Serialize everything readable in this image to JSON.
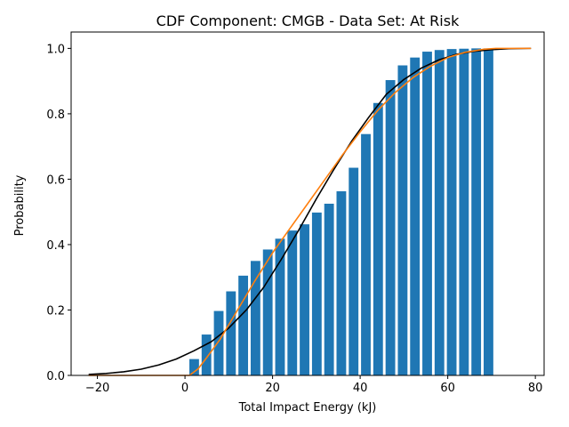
{
  "chart_data": {
    "type": "bar",
    "title": "CDF Component: CMGB - Data Set: At Risk",
    "xlabel": "Total Impact Energy (kJ)",
    "ylabel": "Probability",
    "xlim": [
      -26,
      82
    ],
    "ylim": [
      0,
      1.05
    ],
    "xticks": [
      -20,
      0,
      20,
      40,
      60,
      80
    ],
    "yticks": [
      0.0,
      0.2,
      0.4,
      0.6,
      0.8,
      1.0
    ],
    "xtick_labels": [
      "−20",
      "0",
      "20",
      "40",
      "60",
      "80"
    ],
    "ytick_labels": [
      "0.0",
      "0.2",
      "0.4",
      "0.6",
      "0.8",
      "1.0"
    ],
    "bar_color": "#1f77b4",
    "bar_width": 2.2,
    "bars": {
      "x": [
        2.1,
        4.9,
        7.7,
        10.5,
        13.3,
        16.1,
        18.9,
        21.7,
        24.5,
        27.3,
        30.1,
        32.9,
        35.7,
        38.5,
        41.3,
        44.1,
        46.9,
        49.7,
        52.5,
        55.3,
        58.1,
        60.9,
        63.7,
        66.5,
        69.3
      ],
      "y": [
        0.05,
        0.125,
        0.197,
        0.257,
        0.305,
        0.35,
        0.385,
        0.418,
        0.443,
        0.462,
        0.498,
        0.525,
        0.563,
        0.635,
        0.738,
        0.833,
        0.903,
        0.948,
        0.972,
        0.99,
        0.995,
        0.998,
        0.999,
        1.0,
        1.0
      ]
    },
    "series": [
      {
        "color": "#000000",
        "x": [
          -22,
          -18,
          -14,
          -10,
          -6,
          -2,
          2,
          6,
          10,
          14,
          18,
          22,
          26,
          30,
          34,
          38,
          42,
          46,
          50,
          54,
          58,
          62,
          66,
          70,
          74,
          79
        ],
        "y": [
          0.003,
          0.006,
          0.011,
          0.019,
          0.032,
          0.05,
          0.075,
          0.103,
          0.145,
          0.2,
          0.27,
          0.355,
          0.445,
          0.54,
          0.63,
          0.715,
          0.79,
          0.86,
          0.905,
          0.94,
          0.965,
          0.982,
          0.991,
          0.996,
          0.999,
          1.0
        ]
      },
      {
        "color": "#ff7f0e",
        "x": [
          -22,
          -10,
          0,
          1,
          3,
          5,
          8,
          12,
          16,
          20,
          24,
          28,
          32,
          36,
          40,
          44,
          48,
          52,
          56,
          60,
          64,
          68,
          71,
          75,
          79
        ],
        "y": [
          0.0,
          0.0,
          0.0,
          0.0,
          0.02,
          0.055,
          0.11,
          0.2,
          0.29,
          0.375,
          0.45,
          0.525,
          0.6,
          0.675,
          0.745,
          0.81,
          0.865,
          0.91,
          0.945,
          0.972,
          0.988,
          0.997,
          1.0,
          1.0,
          1.0
        ]
      }
    ]
  }
}
